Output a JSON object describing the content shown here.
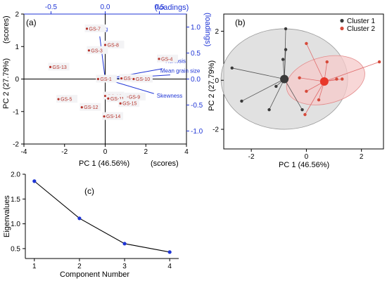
{
  "chart_data": [
    {
      "id": "a",
      "panel_label": "(a)",
      "type": "scatter",
      "title": "",
      "xlabel": "PC 1 (46.56%)",
      "ylabel": "PC 2 (27.79%)",
      "x_scores_label": "(scores)",
      "y_scores_label": "(scores)",
      "top_axis_label": "(loadings)",
      "right_axis_label": "(loadings)",
      "xlim": [
        -4,
        4
      ],
      "ylim": [
        -2,
        2
      ],
      "xticks": [
        "-4",
        "-2",
        "0",
        "2",
        "4"
      ],
      "yticks": [
        "-2",
        "-1",
        "0",
        "1",
        "2"
      ],
      "loadings_xlim": [
        -0.75,
        0.75
      ],
      "loadings_ylim": [
        -1.25,
        1.25
      ],
      "loadings_xticks": [
        "-0.5",
        "0.0",
        "0.5"
      ],
      "loadings_yticks": [
        "-1.0",
        "-0.5",
        "0.0",
        "0.5",
        "1.0"
      ],
      "loadings_xtick_values": [
        -0.5,
        0.0,
        0.5
      ],
      "loadings_ytick_values": [
        -1.0,
        -0.5,
        0.0,
        0.5,
        1.0
      ],
      "point_color": "#b5332b",
      "loading_color": "#1f35d6",
      "points": [
        {
          "label": "GS-7",
          "x": -0.9,
          "y": 1.55
        },
        {
          "label": "GS-8",
          "x": 0.0,
          "y": 1.05
        },
        {
          "label": "GS-3",
          "x": -0.8,
          "y": 0.88
        },
        {
          "label": "GS-4",
          "x": 2.65,
          "y": 0.62
        },
        {
          "label": "GS-13",
          "x": -2.7,
          "y": 0.37
        },
        {
          "label": "GS-1",
          "x": -0.35,
          "y": 0.0
        },
        {
          "label": "GS-2",
          "x": 0.8,
          "y": 0.02
        },
        {
          "label": "GS-10",
          "x": 1.4,
          "y": 0.0
        },
        {
          "label": "GS-16",
          "x": 0.0,
          "y": -0.52
        },
        {
          "label": "GS-9",
          "x": 1.05,
          "y": -0.55
        },
        {
          "label": "GS-11",
          "x": 0.15,
          "y": -0.6
        },
        {
          "label": "GS-5",
          "x": -2.3,
          "y": -0.62
        },
        {
          "label": "GS-15",
          "x": 0.75,
          "y": -0.75
        },
        {
          "label": "GS-12",
          "x": -1.15,
          "y": -0.87
        },
        {
          "label": "GS-14",
          "x": -0.05,
          "y": -1.15
        }
      ],
      "loadings": [
        {
          "label": "Sorting",
          "x": -0.05,
          "y": 0.82
        },
        {
          "label": "Kurtosis",
          "x": 0.53,
          "y": 0.2
        },
        {
          "label": "Mean grain size",
          "x": 0.6,
          "y": 0.08
        },
        {
          "label": "Skewness",
          "x": 0.45,
          "y": -0.28
        }
      ]
    },
    {
      "id": "b",
      "panel_label": "(b)",
      "type": "scatter",
      "title": "",
      "xlabel": "PC 1 (46.56%)",
      "ylabel": "PC 2 (27.79%)",
      "xlim": [
        -3,
        2.8
      ],
      "ylim": [
        -2.8,
        2.7
      ],
      "xticks": [
        "-2",
        "0",
        "2"
      ],
      "yticks": [
        "-2",
        "0",
        "2"
      ],
      "xtick_values": [
        -2,
        0,
        2
      ],
      "ytick_values": [
        -2,
        0,
        2
      ],
      "legend_position": "top-right",
      "series": [
        {
          "name": "Cluster 1",
          "color": "#3a3a3a",
          "ellipse_fill": "#dcdcdc",
          "centroid": [
            -0.8,
            0.05
          ],
          "points": [
            [
              -0.75,
              2.1
            ],
            [
              -0.75,
              1.25
            ],
            [
              -0.85,
              0.85
            ],
            [
              -2.7,
              0.5
            ],
            [
              -1.1,
              -0.25
            ],
            [
              -2.35,
              -0.85
            ],
            [
              -1.35,
              -1.2
            ],
            [
              -0.15,
              -1.2
            ]
          ]
        },
        {
          "name": "Cluster 2",
          "color": "#d64a3a",
          "ellipse_fill": "#f6c9c9",
          "centroid": [
            0.65,
            -0.05
          ],
          "points": [
            [
              0.0,
              1.5
            ],
            [
              0.75,
              0.75
            ],
            [
              -0.25,
              0.1
            ],
            [
              1.1,
              0.05
            ],
            [
              1.3,
              0.05
            ],
            [
              0.0,
              -0.45
            ],
            [
              0.45,
              -0.8
            ],
            [
              -0.05,
              -1.4
            ],
            [
              2.65,
              0.75
            ]
          ]
        }
      ]
    },
    {
      "id": "c",
      "panel_label": "(c)",
      "type": "line",
      "title": "",
      "xlabel": "Component Number",
      "ylabel": "Eigenvalues",
      "x": [
        1,
        2,
        3,
        4
      ],
      "values": [
        1.86,
        1.11,
        0.6,
        0.43
      ],
      "xlim": [
        0.8,
        4.2
      ],
      "ylim": [
        0.3,
        2.0
      ],
      "xticks": [
        "1",
        "2",
        "3",
        "4"
      ],
      "yticks": [
        "0.5",
        "1.0",
        "1.5",
        "2.0"
      ],
      "xtick_values": [
        1,
        2,
        3,
        4
      ],
      "ytick_values": [
        0.5,
        1.0,
        1.5,
        2.0
      ],
      "marker_color": "#1f35d6",
      "line_color": "#000000"
    }
  ]
}
